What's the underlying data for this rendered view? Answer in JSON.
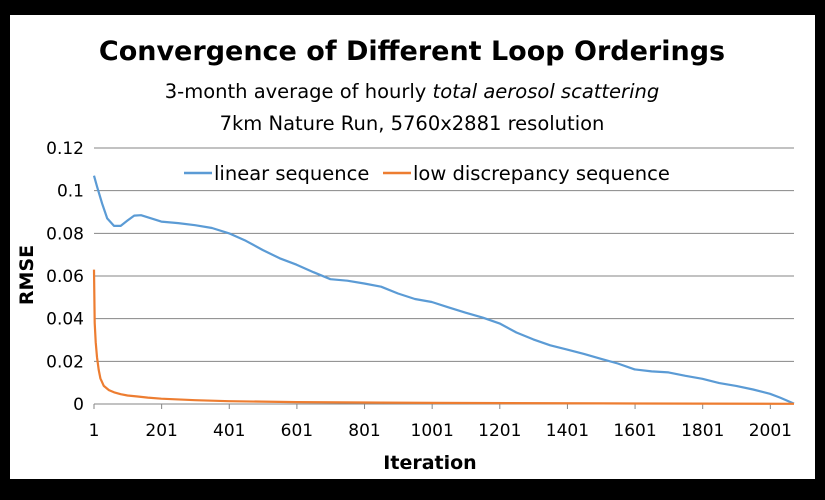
{
  "chart_data": {
    "type": "line",
    "title": "Convergence of Different Loop Orderings",
    "subtitle_prefix": "3-month average of hourly ",
    "subtitle_italic": "total aerosol scattering",
    "subtitle2": "7km Nature Run, 5760x2881 resolution",
    "xlabel": "Iteration",
    "ylabel": "RMSE",
    "xlim": [
      1,
      2071
    ],
    "ylim": [
      0,
      0.12
    ],
    "xticks": [
      1,
      201,
      401,
      601,
      801,
      1001,
      1201,
      1401,
      1601,
      1801,
      2001
    ],
    "yticks": [
      0,
      0.02,
      0.04,
      0.06,
      0.08,
      0.1,
      0.12
    ],
    "ytick_labels": [
      "0",
      "0.02",
      "0.04",
      "0.06",
      "0.08",
      "0.1",
      "0.12"
    ],
    "grid": true,
    "legend_position": "top",
    "series": [
      {
        "name": "linear sequence",
        "color": "#5b9bd5",
        "x": [
          1,
          10,
          25,
          40,
          60,
          80,
          100,
          120,
          140,
          160,
          200,
          250,
          300,
          350,
          400,
          450,
          500,
          550,
          600,
          650,
          700,
          750,
          800,
          850,
          900,
          950,
          1000,
          1050,
          1100,
          1150,
          1200,
          1250,
          1300,
          1350,
          1400,
          1450,
          1500,
          1550,
          1600,
          1650,
          1700,
          1750,
          1800,
          1850,
          1900,
          1950,
          2000,
          2030,
          2071
        ],
        "y": [
          0.107,
          0.102,
          0.094,
          0.087,
          0.0835,
          0.0835,
          0.086,
          0.0883,
          0.0885,
          0.0875,
          0.0855,
          0.0848,
          0.0838,
          0.0825,
          0.08,
          0.0765,
          0.0722,
          0.0683,
          0.0653,
          0.0618,
          0.0585,
          0.0578,
          0.0565,
          0.055,
          0.0518,
          0.0492,
          0.0478,
          0.0453,
          0.0428,
          0.0405,
          0.0378,
          0.0335,
          0.0303,
          0.0275,
          0.0255,
          0.0235,
          0.0212,
          0.019,
          0.0162,
          0.0153,
          0.0148,
          0.0132,
          0.0118,
          0.0098,
          0.0085,
          0.0068,
          0.0048,
          0.003,
          0.0002
        ]
      },
      {
        "name": "low discrepancy sequence",
        "color": "#ed7d31",
        "x": [
          1,
          3,
          6,
          10,
          15,
          20,
          30,
          45,
          60,
          80,
          100,
          130,
          160,
          200,
          300,
          400,
          600,
          800,
          1000,
          1500,
          2071
        ],
        "y": [
          0.063,
          0.038,
          0.029,
          0.022,
          0.016,
          0.012,
          0.0085,
          0.0065,
          0.0055,
          0.0046,
          0.004,
          0.0035,
          0.003,
          0.0025,
          0.0018,
          0.0013,
          0.0009,
          0.0007,
          0.0005,
          0.0003,
          0.0001
        ]
      }
    ]
  }
}
